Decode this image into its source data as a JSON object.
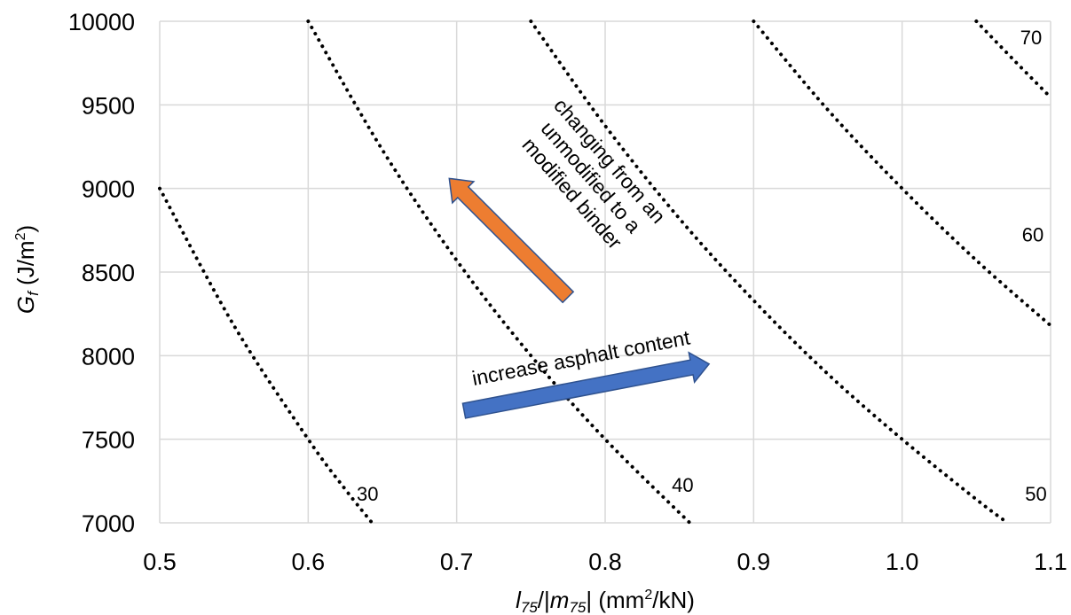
{
  "chart_data": {
    "type": "line",
    "xlabel_parts": {
      "l": "l",
      "l_sub": "75",
      "mid": "/|",
      "m": "m",
      "m_sub": "75",
      "unit": "| (mm",
      "unit_sup": "2",
      "unit_end": "/kN)"
    },
    "ylabel_parts": {
      "g": "G",
      "g_sub": "f",
      "unit": " (J/m",
      "unit_sup": "2",
      "unit_end": ")"
    },
    "xlim": [
      0.5,
      1.1
    ],
    "ylim": [
      7000,
      10000
    ],
    "x_ticks": [
      "0.5",
      "0.6",
      "0.7",
      "0.8",
      "0.9",
      "1.0",
      "1.1"
    ],
    "y_ticks": [
      "7000",
      "7500",
      "8000",
      "8500",
      "9000",
      "9500",
      "10000"
    ],
    "grid": true,
    "series": [
      {
        "name": "30",
        "x": [
          0.5,
          0.55,
          0.6,
          0.625,
          0.643
        ],
        "y": [
          9000,
          8180,
          7500,
          7200,
          7000
        ]
      },
      {
        "name": "40",
        "x": [
          0.6,
          0.65,
          0.7,
          0.75,
          0.8,
          0.857
        ],
        "y": [
          10000,
          9230,
          8570,
          8000,
          7500,
          7000
        ]
      },
      {
        "name": "50",
        "x": [
          0.75,
          0.8,
          0.85,
          0.9,
          0.95,
          1.0,
          1.05,
          1.071
        ],
        "y": [
          10000,
          9375,
          8820,
          8330,
          7890,
          7500,
          7140,
          7000
        ]
      },
      {
        "name": "60",
        "x": [
          0.9,
          0.95,
          1.0,
          1.05,
          1.1
        ],
        "y": [
          10000,
          9470,
          9000,
          8570,
          8180
        ]
      },
      {
        "name": "70",
        "x": [
          1.05,
          1.075,
          1.1
        ],
        "y": [
          10000,
          9770,
          9545
        ]
      }
    ],
    "annotations": [
      {
        "name": "increase-asphalt-content",
        "text": "increase asphalt content",
        "color": "#4472C4",
        "from": [
          0.705,
          7670
        ],
        "to": [
          0.87,
          7950
        ]
      },
      {
        "name": "binder-change",
        "lines": [
          "changing from an",
          "unmodified to a",
          "modified binder"
        ],
        "color": "#ED7D31",
        "from": [
          0.775,
          8350
        ],
        "to": [
          0.695,
          9060
        ]
      }
    ]
  }
}
